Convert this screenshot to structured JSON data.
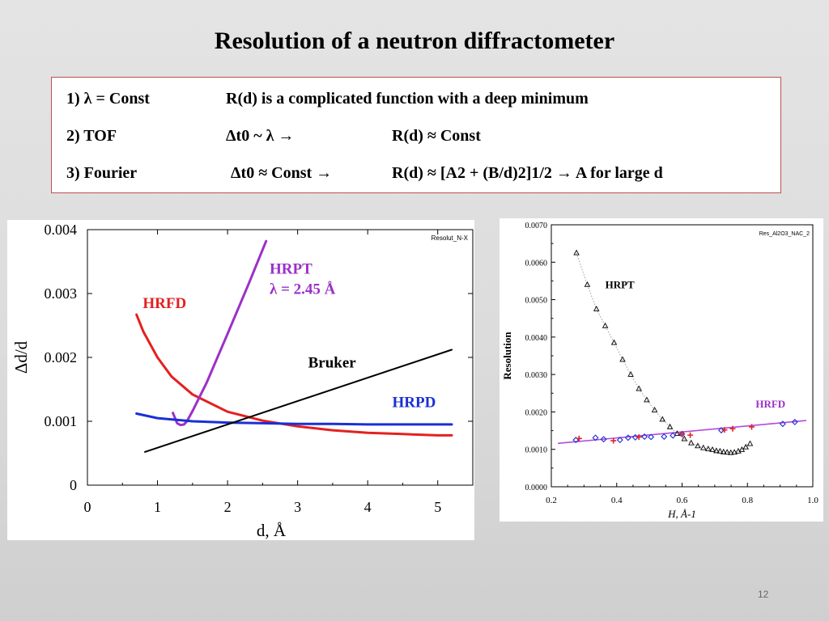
{
  "slide": {
    "title": "Resolution of a neutron diffractometer",
    "page_number": "12"
  },
  "info_box": {
    "rows": [
      {
        "method": "1) λ = Const",
        "relation": "R(d) is a complicated function with a deep minimum",
        "result": ""
      },
      {
        "method": "2) TOF",
        "relation": "Δt0 ~ λ  →",
        "result": "R(d) ≈ Const"
      },
      {
        "method": "3) Fourier",
        "relation": "Δt0 ≈ Const  →",
        "result": "R(d) ≈ [A2 + (B/d)2]1/2  →  A for large d"
      }
    ]
  },
  "chart_data": [
    {
      "type": "line",
      "corner_label": "Resolut_N-X",
      "xlabel": "d, Å",
      "ylabel": "Δd/d",
      "xlim": [
        0,
        5.5
      ],
      "ylim": [
        0,
        0.004
      ],
      "xticks": [
        0,
        1,
        2,
        3,
        4,
        5
      ],
      "yticks": [
        0,
        0.001,
        0.002,
        0.003,
        0.004
      ],
      "ytick_labels": [
        "0",
        "0.001",
        "0.002",
        "0.003",
        "0.004"
      ],
      "series": [
        {
          "name": "HRFD",
          "color": "#e52020",
          "x": [
            0.7,
            0.8,
            1.0,
            1.2,
            1.5,
            2.0,
            2.5,
            3.0,
            3.5,
            4.0,
            4.5,
            5.0,
            5.2
          ],
          "y": [
            0.00267,
            0.0024,
            0.002,
            0.0017,
            0.00142,
            0.00115,
            0.00101,
            0.00092,
            0.00086,
            0.00082,
            0.0008,
            0.00078,
            0.00078
          ]
        },
        {
          "name": "HRPT",
          "sublabel": "λ = 2.45 Å",
          "color": "#9b30c8",
          "x": [
            1.22,
            1.28,
            1.33,
            1.38,
            1.42,
            1.5,
            1.7,
            2.0,
            2.3,
            2.55
          ],
          "y": [
            0.00113,
            0.00097,
            0.00094,
            0.00095,
            0.001,
            0.00116,
            0.0016,
            0.00237,
            0.00315,
            0.00382
          ]
        },
        {
          "name": "HRPD",
          "color": "#1a2fd6",
          "x": [
            0.7,
            1.0,
            1.5,
            2.0,
            2.5,
            3.0,
            3.5,
            4.0,
            4.5,
            5.0,
            5.2
          ],
          "y": [
            0.00112,
            0.00105,
            0.001,
            0.00098,
            0.00097,
            0.00096,
            0.00096,
            0.00095,
            0.00095,
            0.00095,
            0.00095
          ]
        },
        {
          "name": "Bruker",
          "color": "#000000",
          "x": [
            0.82,
            5.2
          ],
          "y": [
            0.00052,
            0.00212
          ]
        }
      ]
    },
    {
      "type": "scatter",
      "corner_label": "Res_Al2O3_NAC_2",
      "xlabel": "H, Å-1",
      "ylabel": "Resolution",
      "xlim": [
        0.2,
        1.0
      ],
      "ylim": [
        0,
        0.007
      ],
      "xticks": [
        0.2,
        0.4,
        0.6,
        0.8,
        1.0
      ],
      "xtick_labels": [
        "0.2",
        "0.4",
        "0.6",
        "0.8",
        "1.0"
      ],
      "yticks": [
        0,
        0.001,
        0.002,
        0.003,
        0.004,
        0.005,
        0.006,
        0.007
      ],
      "ytick_labels": [
        "0.0000",
        "0.0010",
        "0.0020",
        "0.0030",
        "0.0040",
        "0.0050",
        "0.0060",
        "0.0070"
      ],
      "series": [
        {
          "name": "HRPT",
          "marker": "triangle",
          "color": "#000000",
          "x": [
            0.277,
            0.31,
            0.338,
            0.365,
            0.392,
            0.418,
            0.443,
            0.468,
            0.492,
            0.516,
            0.54,
            0.563,
            0.585,
            0.607,
            0.628,
            0.648,
            0.665,
            0.68,
            0.693,
            0.705,
            0.716,
            0.727,
            0.738,
            0.749,
            0.76,
            0.772,
            0.783,
            0.795,
            0.808
          ],
          "y": [
            0.00625,
            0.0054,
            0.00475,
            0.0043,
            0.00385,
            0.0034,
            0.003,
            0.00262,
            0.00232,
            0.00205,
            0.0018,
            0.0016,
            0.00142,
            0.00128,
            0.00117,
            0.00109,
            0.00104,
            0.00101,
            0.00099,
            0.00096,
            0.00095,
            0.00093,
            0.00092,
            0.00091,
            0.00092,
            0.00095,
            0.00099,
            0.00106,
            0.00115
          ]
        },
        {
          "name": "HRFD",
          "marker": "diamond",
          "color": "#1a2fd6",
          "x": [
            0.275,
            0.335,
            0.36,
            0.41,
            0.435,
            0.457,
            0.485,
            0.505,
            0.545,
            0.572,
            0.6,
            0.72,
            0.908,
            0.945
          ],
          "y": [
            0.00125,
            0.00131,
            0.00127,
            0.00125,
            0.00131,
            0.00132,
            0.00134,
            0.00133,
            0.00134,
            0.00137,
            0.00141,
            0.00151,
            0.00168,
            0.00173
          ]
        },
        {
          "name": "",
          "marker": "plus",
          "color": "#e0202a",
          "x": [
            0.285,
            0.39,
            0.468,
            0.6,
            0.625,
            0.73,
            0.755,
            0.813
          ],
          "y": [
            0.00129,
            0.00123,
            0.00133,
            0.00141,
            0.00138,
            0.00152,
            0.00155,
            0.0016
          ]
        },
        {
          "name": "",
          "type": "fit-line",
          "color": "#b44adc",
          "x": [
            0.22,
            0.98
          ],
          "y": [
            0.00116,
            0.00177
          ]
        }
      ],
      "curve_labels": {
        "HRPT": "HRPT",
        "HRFD": "HRFD"
      }
    }
  ]
}
